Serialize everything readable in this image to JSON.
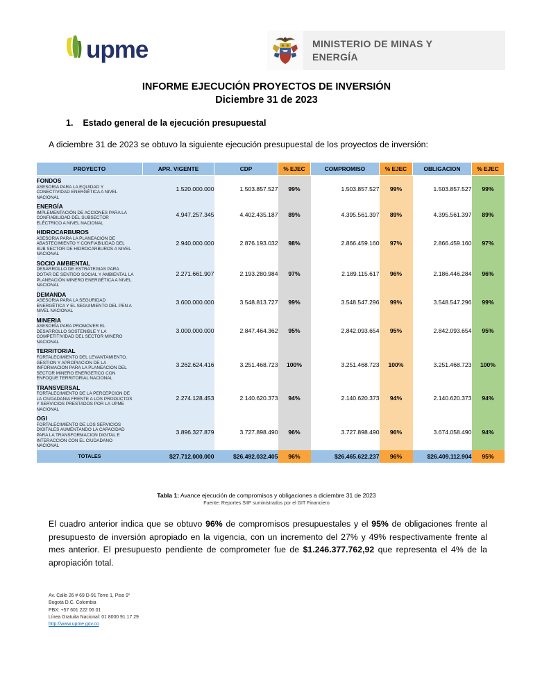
{
  "header": {
    "upme_word": "upme",
    "ministry_line1": "MINISTERIO DE MINAS Y",
    "ministry_line2": "ENERGÍA"
  },
  "title": {
    "line1": "INFORME EJECUCIÓN PROYECTOS DE INVERSIÓN",
    "line2": "Diciembre 31 de 2023"
  },
  "section": {
    "number": "1.",
    "heading": "Estado general de la ejecución presupuestal"
  },
  "intro": "A diciembre 31 de 2023 se obtuvo la siguiente ejecución presupuestal de los proyectos de inversión:",
  "table": {
    "columns": [
      "PROYECTO",
      "APR. VIGENTE",
      "CDP",
      "% EJEC",
      "COMPROMISO",
      "% EJEC",
      "OBLIGACION",
      "% EJEC"
    ],
    "rows": [
      {
        "name": "FONDOS",
        "description": "ASESORIA PARA LA EQUIDAD Y CONECTIVIDAD ENERGÉTICA A NIVEL NACIONAL",
        "apr_vigente": "1.520.000.000",
        "cdp": "1.503.857.527",
        "ejec_cdp": "99%",
        "compromiso": "1.503.857.527",
        "ejec_compromiso": "99%",
        "obligacion": "1.503.857.527",
        "ejec_obligacion": "99%"
      },
      {
        "name": "ENERGÍA",
        "description": "IMPLEMENTACIÓN DE ACCIONES PARA LA CONFIABILIDAD DEL SUBSECTOR ELÉCTRICO A NIVEL  NACIONAL",
        "apr_vigente": "4.947.257.345",
        "cdp": "4.402.435.187",
        "ejec_cdp": "89%",
        "compromiso": "4.395.561.397",
        "ejec_compromiso": "89%",
        "obligacion": "4.395.561.397",
        "ejec_obligacion": "89%"
      },
      {
        "name": "HIDROCARBUROS",
        "description": "ASESORIA PARA LA PLANEACIÓN DE ABASTECIMIENTO Y CONFIABILIDAD DEL SUB SECTOR DE HIDROCARBUROS A NIVEL NACIONAL",
        "apr_vigente": "2.940.000.000",
        "cdp": "2.876.193.032",
        "ejec_cdp": "98%",
        "compromiso": "2.866.459.160",
        "ejec_compromiso": "97%",
        "obligacion": "2.866.459.160",
        "ejec_obligacion": "97%"
      },
      {
        "name": "SOCIO AMBIENTAL",
        "description": "DESARROLLO DE ESTRATEGIAS PARA DOTAR DE SENTIDO SOCIAL Y AMBIENTAL LA PLANEACIÓN MINERO ENERGÉTICA A NIVEL NACIONAL",
        "apr_vigente": "2.271.661.907",
        "cdp": "2.193.280.984",
        "ejec_cdp": "97%",
        "compromiso": "2.189.115.617",
        "ejec_compromiso": "96%",
        "obligacion": "2.186.446.284",
        "ejec_obligacion": "96%"
      },
      {
        "name": "DEMANDA",
        "description": "ASESORIA PARA LA SEGURIDAD ENERGÉTICA Y EL SEGUIMIENTO DEL  PEN  A NIVEL NACIONAL",
        "apr_vigente": "3.600.000.000",
        "cdp": "3.548.813.727",
        "ejec_cdp": "99%",
        "compromiso": "3.548.547.296",
        "ejec_compromiso": "99%",
        "obligacion": "3.548.547.296",
        "ejec_obligacion": "99%"
      },
      {
        "name": "MINERIA",
        "description": "ASESORÍA PARA PROMOVER EL DESARROLLO SOSTENIBLE Y LA COMPETITIVIDAD DEL SECTOR MINERO NACIONAL",
        "apr_vigente": "3.000.000.000",
        "cdp": "2.847.464.362",
        "ejec_cdp": "95%",
        "compromiso": "2.842.093.654",
        "ejec_compromiso": "95%",
        "obligacion": "2.842.093.654",
        "ejec_obligacion": "95%"
      },
      {
        "name": "TERRITORIAL",
        "description": "FORTALECIMIENTO DEL LEVANTAMIENTO, GESTION Y APROPIACION DE LA INFORMACION PARA LA PLANEACION  DEL SECTOR MINERO ENERGETICO CON ENFOQUE TERRITORIAL  NACIONAL",
        "apr_vigente": "3.262.624.416",
        "cdp": "3.251.468.723",
        "ejec_cdp": "100%",
        "compromiso": "3.251.468.723",
        "ejec_compromiso": "100%",
        "obligacion": "3.251.468.723",
        "ejec_obligacion": "100%"
      },
      {
        "name": "TRANSVERSAL",
        "description": "FORTALECIMIENTO DE LA PERCEPCION DE LA CIUDADANIA FRENTE A LOS PRODUCTOS Y SERVICIOS PRESTADOS POR LA UPME NACIONAL",
        "apr_vigente": "2.274.128.453",
        "cdp": "2.140.620.373",
        "ejec_cdp": "94%",
        "compromiso": "2.140.620.373",
        "ejec_compromiso": "94%",
        "obligacion": "2.140.620.373",
        "ejec_obligacion": "94%"
      },
      {
        "name": "OGI",
        "description": "FORTALECIMIENTO DE LOS SERVICIOS DIGITALES AUMENTANDO LA CAPACIDAD PARA LA TRANSFORMACION DIGITAL E INTERACCION CON EL CIUDADANO NACIONAL",
        "apr_vigente": "3.896.327.879",
        "cdp": "3.727.898.490",
        "ejec_cdp": "96%",
        "compromiso": "3.727.898.490",
        "ejec_compromiso": "96%",
        "obligacion": "3.674.058.490",
        "ejec_obligacion": "94%"
      }
    ],
    "totals": {
      "label": "TOTALES",
      "apr_vigente": "$27.712.000.000",
      "cdp": "$26.492.032.405",
      "ejec_cdp": "96%",
      "compromiso": "$26.465.622.237",
      "ejec_compromiso": "96%",
      "obligacion": "$26.409.112.904",
      "ejec_obligacion": "95%"
    },
    "caption_bold": "Tabla 1:",
    "caption_rest": " Avance ejecución de compromisos y obligaciones a diciembre 31 de 2023",
    "source": "Fuente: Reportes SIIF suministrados por el GIT Financiero"
  },
  "analysis_segments": [
    {
      "text": "El cuadro anterior indica que se obtuvo ",
      "bold": false
    },
    {
      "text": "96%",
      "bold": true
    },
    {
      "text": " de compromisos presupuestales y el ",
      "bold": false
    },
    {
      "text": "95%",
      "bold": true
    },
    {
      "text": " de obligaciones frente al presupuesto de inversión apropiado en la vigencia, con un incremento del 27% y 49% respectivamente frente al mes anterior.  El presupuesto pendiente de comprometer fue de ",
      "bold": false
    },
    {
      "text": "$1.246.377.762,92",
      "bold": true
    },
    {
      "text": " que representa el 4% de la apropiación total.",
      "bold": false
    }
  ],
  "footer": {
    "lines": [
      "Av. Calle 26 # 69 D-91 Torre 1, Piso 9°",
      "Bogotá D.C. Colombia",
      "PBX: +57 601 222 06 01",
      "Línea Gratuita Nacional: 01 8000 91 17 29"
    ],
    "link": "http://www.upme.gov.co"
  },
  "colors": {
    "header_blue": "#9cc3e6",
    "row_blue": "#deeaf6",
    "pct_gray": "#d9d9d9",
    "pct_light_orange": "#fbd5a2",
    "pct_green": "#a9d18e",
    "header_orange": "#f8a33b",
    "upme_navy": "#24316b",
    "ministry_gray_bg": "#f1f1f1",
    "link_blue": "#0563c1"
  }
}
